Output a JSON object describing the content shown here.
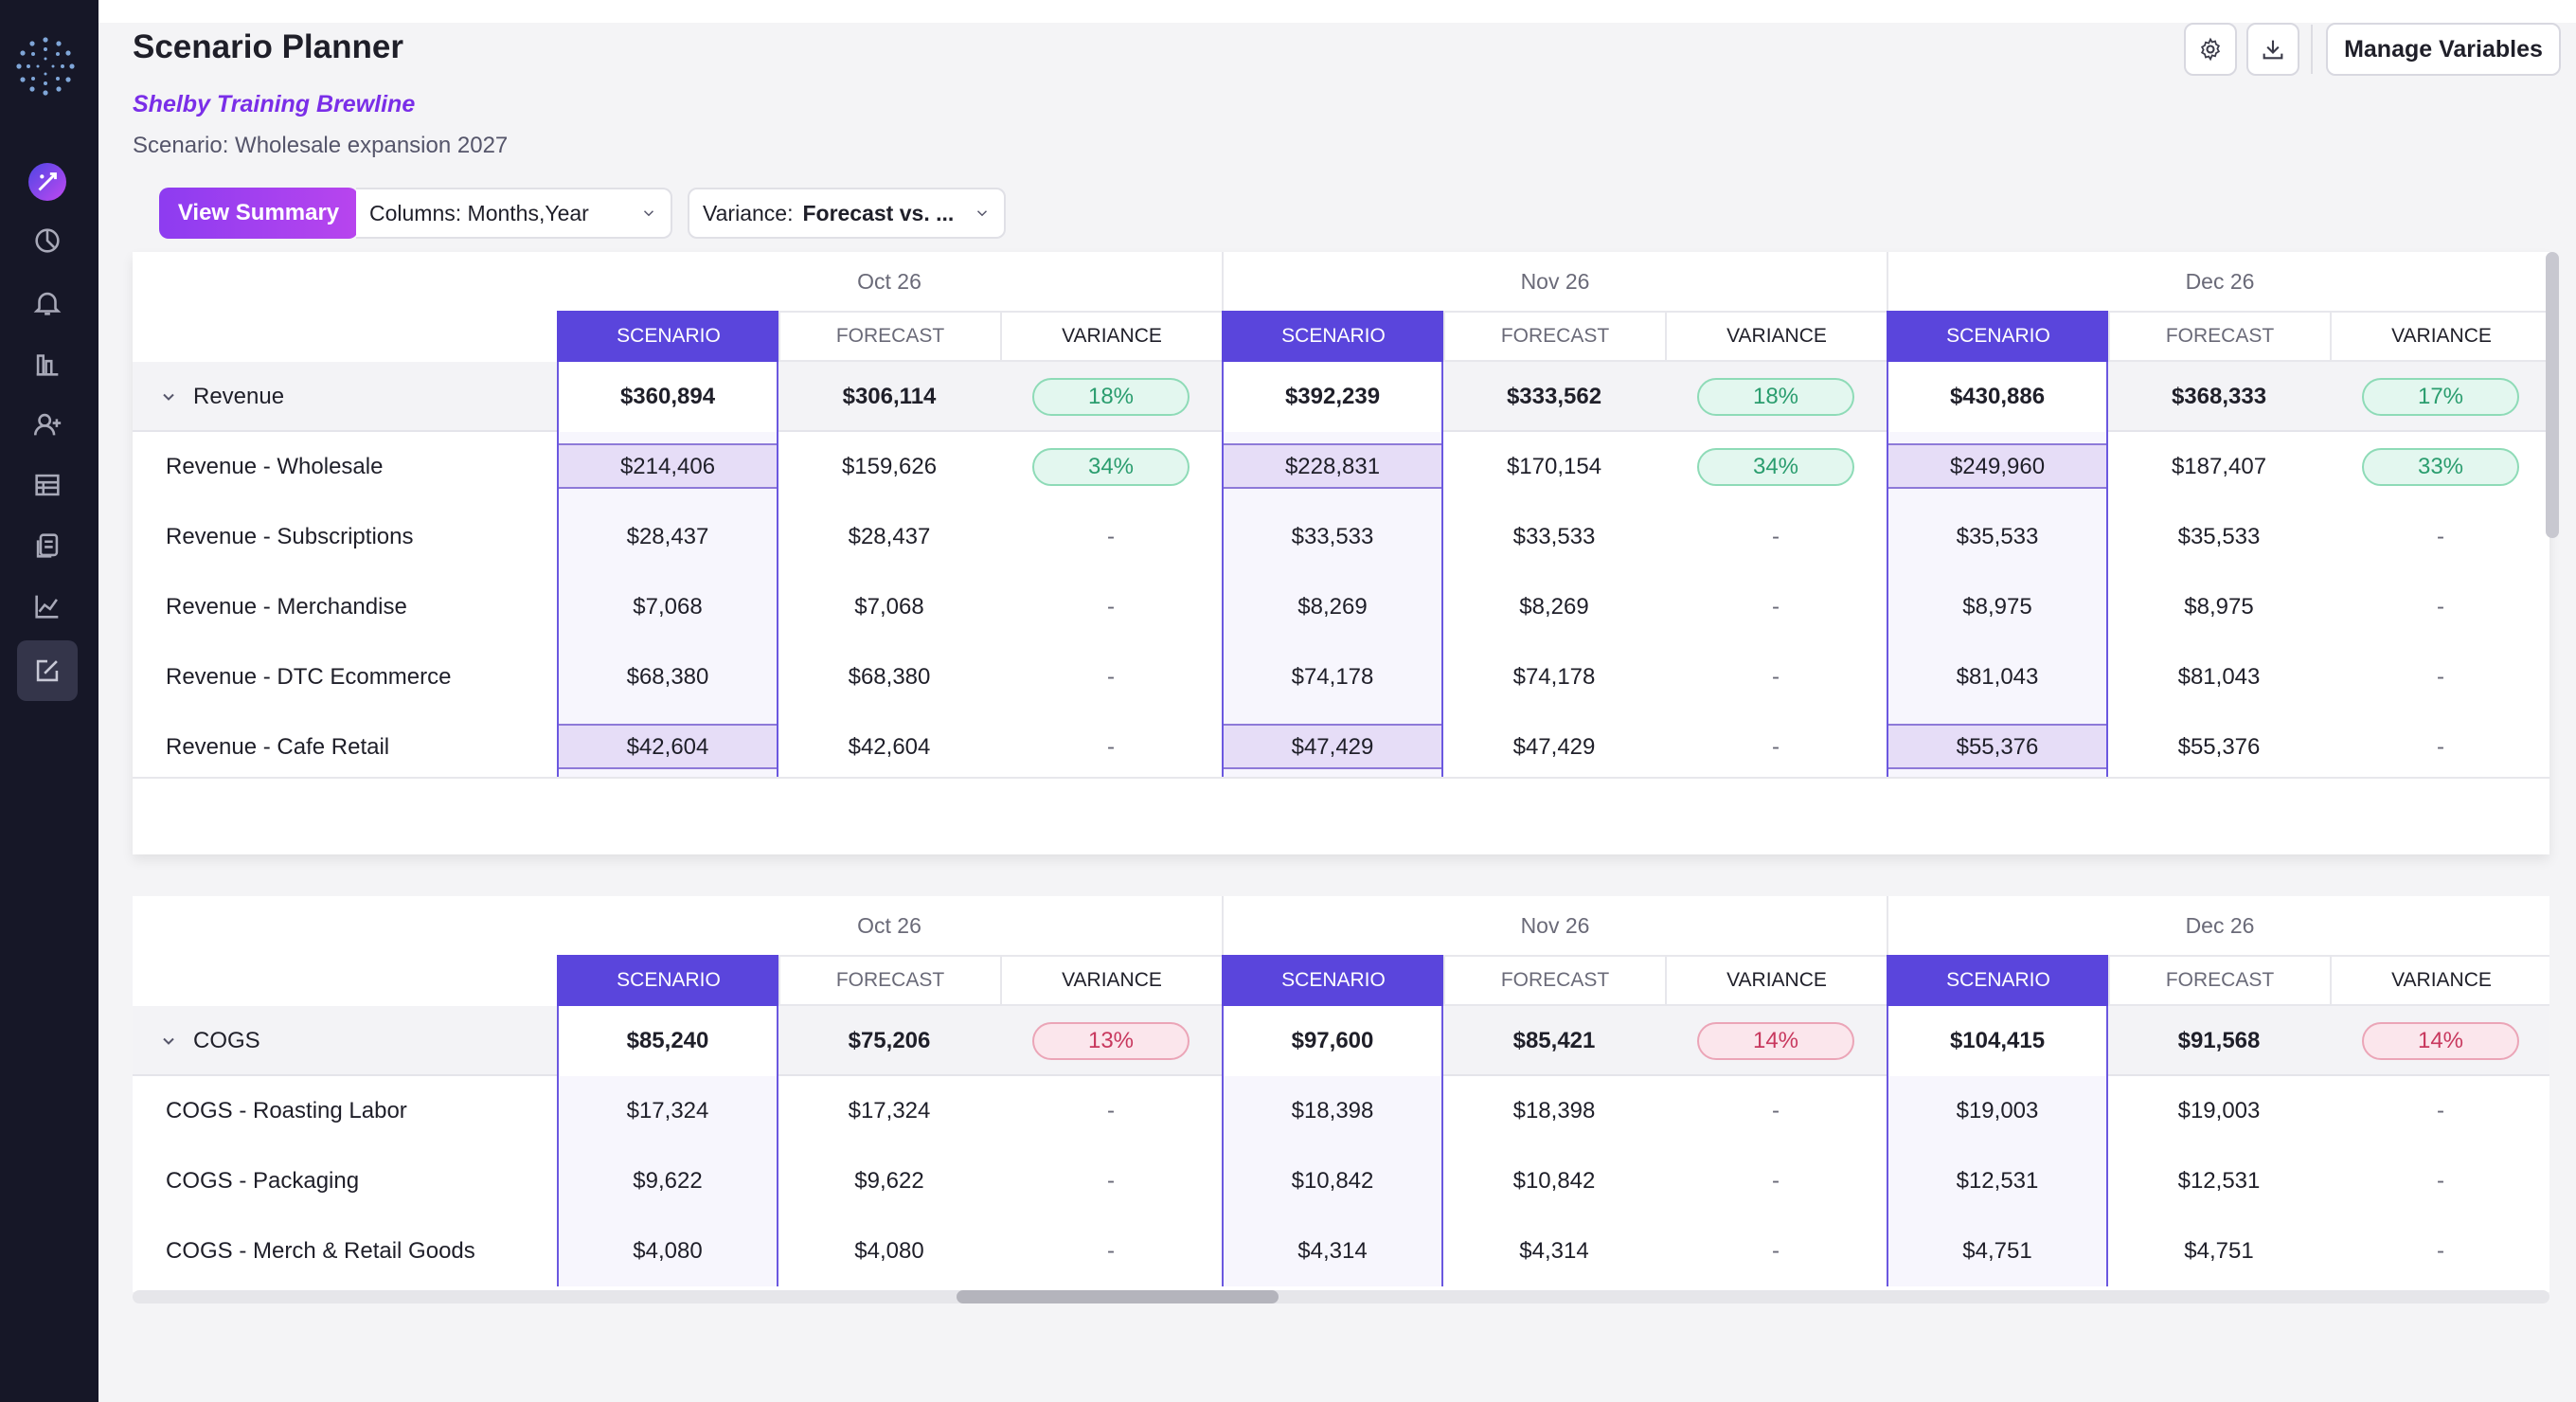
{
  "header": {
    "title": "Scenario Planner",
    "company": "Shelby Training Brewline",
    "scenario": "Scenario: Wholesale expansion 2027",
    "manage_label": "Manage Variables"
  },
  "toolbar": {
    "view_summary": "View Summary",
    "columns": "Columns: Months,Year",
    "variance_prefix": "Variance:",
    "variance_value": "Forecast vs. ..."
  },
  "months": [
    "Oct 26",
    "Nov 26",
    "Dec 26"
  ],
  "col_headers": [
    "SCENARIO",
    "FORECAST",
    "VARIANCE"
  ],
  "revenue": {
    "total": {
      "label": "Revenue",
      "values": [
        [
          "$360,894",
          "$306,114",
          "18%"
        ],
        [
          "$392,239",
          "$333,562",
          "18%"
        ],
        [
          "$430,886",
          "$368,333",
          "17%"
        ]
      ]
    },
    "rows": [
      {
        "label": "Revenue - Wholesale",
        "values": [
          [
            "$214,406",
            "$159,626",
            "34%"
          ],
          [
            "$228,831",
            "$170,154",
            "34%"
          ],
          [
            "$249,960",
            "$187,407",
            "33%"
          ]
        ]
      },
      {
        "label": "Revenue - Subscriptions",
        "values": [
          [
            "$28,437",
            "$28,437",
            "-"
          ],
          [
            "$33,533",
            "$33,533",
            "-"
          ],
          [
            "$35,533",
            "$35,533",
            "-"
          ]
        ]
      },
      {
        "label": "Revenue - Merchandise",
        "values": [
          [
            "$7,068",
            "$7,068",
            "-"
          ],
          [
            "$8,269",
            "$8,269",
            "-"
          ],
          [
            "$8,975",
            "$8,975",
            "-"
          ]
        ]
      },
      {
        "label": "Revenue - DTC Ecommerce",
        "values": [
          [
            "$68,380",
            "$68,380",
            "-"
          ],
          [
            "$74,178",
            "$74,178",
            "-"
          ],
          [
            "$81,043",
            "$81,043",
            "-"
          ]
        ]
      },
      {
        "label": "Revenue - Cafe Retail",
        "values": [
          [
            "$42,604",
            "$42,604",
            "-"
          ],
          [
            "$47,429",
            "$47,429",
            "-"
          ],
          [
            "$55,376",
            "$55,376",
            "-"
          ]
        ]
      }
    ]
  },
  "cogs": {
    "total": {
      "label": "COGS",
      "values": [
        [
          "$85,240",
          "$75,206",
          "13%"
        ],
        [
          "$97,600",
          "$85,421",
          "14%"
        ],
        [
          "$104,415",
          "$91,568",
          "14%"
        ]
      ]
    },
    "rows": [
      {
        "label": "COGS - Roasting Labor",
        "values": [
          [
            "$17,324",
            "$17,324",
            "-"
          ],
          [
            "$18,398",
            "$18,398",
            "-"
          ],
          [
            "$19,003",
            "$19,003",
            "-"
          ]
        ]
      },
      {
        "label": "COGS - Packaging",
        "values": [
          [
            "$9,622",
            "$9,622",
            "-"
          ],
          [
            "$10,842",
            "$10,842",
            "-"
          ],
          [
            "$12,531",
            "$12,531",
            "-"
          ]
        ]
      },
      {
        "label": "COGS - Merch & Retail Goods",
        "values": [
          [
            "$4,080",
            "$4,080",
            "-"
          ],
          [
            "$4,314",
            "$4,314",
            "-"
          ],
          [
            "$4,751",
            "$4,751",
            "-"
          ]
        ]
      }
    ]
  },
  "colors": {
    "accent": "#5a45dc",
    "brand": "#7a2ee8",
    "positive": "#2a9d6e",
    "negative": "#c8385e"
  },
  "icons": [
    "logo-icon",
    "ai-icon",
    "pie-chart-icon",
    "bell-icon",
    "bar-chart-icon",
    "add-user-icon",
    "table-icon",
    "documents-icon",
    "line-chart-icon",
    "edit-icon",
    "gear-icon",
    "download-icon",
    "chevron-down-icon"
  ]
}
